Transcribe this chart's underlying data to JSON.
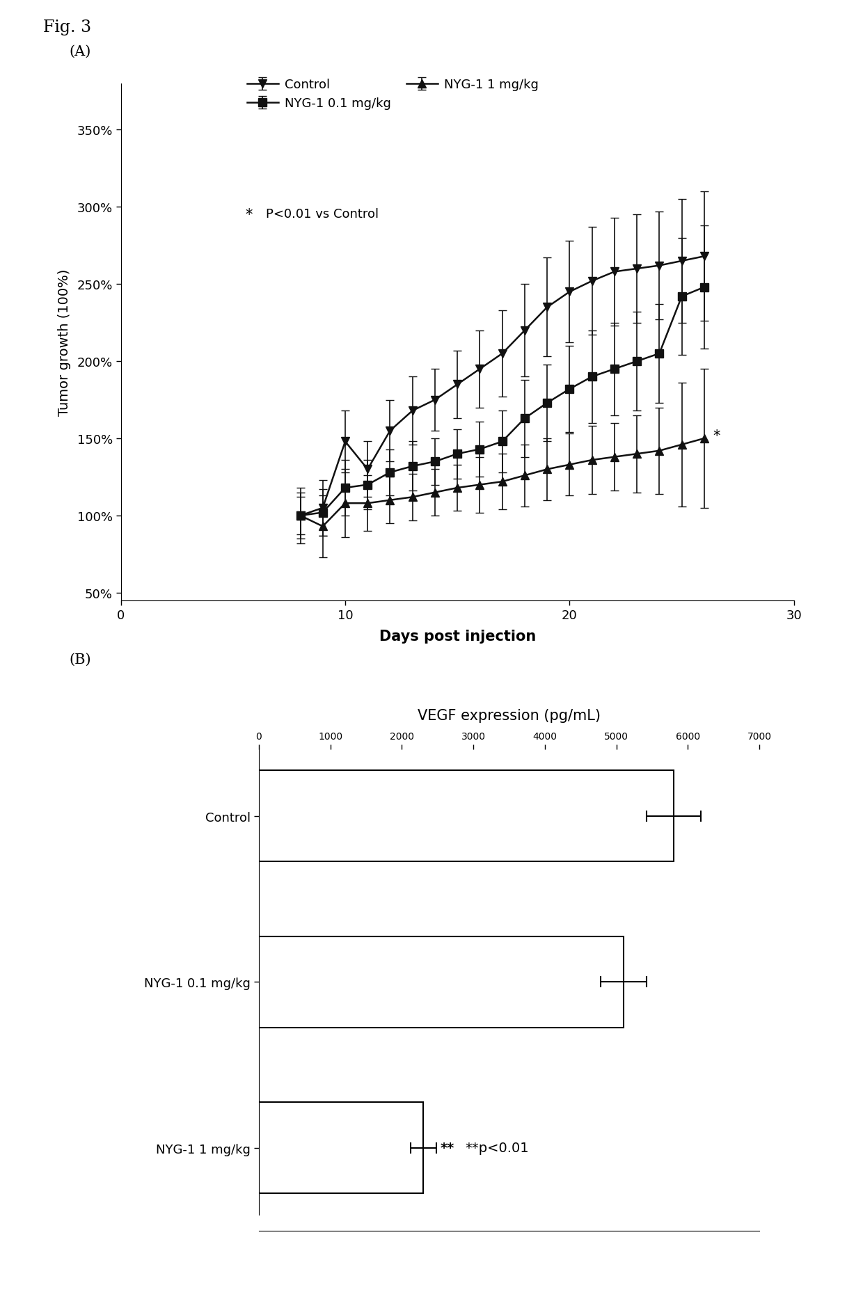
{
  "fig_label": "Fig. 3",
  "panel_A_label": "(A)",
  "panel_B_label": "(B)",
  "lineA_x": [
    8,
    9,
    10,
    11,
    12,
    13,
    14,
    15,
    16,
    17,
    18,
    19,
    20,
    21,
    22,
    23,
    24,
    25,
    26
  ],
  "lineA_y": [
    100,
    105,
    148,
    130,
    155,
    168,
    175,
    185,
    195,
    205,
    220,
    235,
    245,
    252,
    258,
    260,
    262,
    265,
    268
  ],
  "lineA_yerr": [
    15,
    18,
    20,
    18,
    20,
    22,
    20,
    22,
    25,
    28,
    30,
    32,
    33,
    35,
    35,
    35,
    35,
    40,
    42
  ],
  "lineA_label": "Control",
  "lineA_marker": "v",
  "lineA_color": "#111111",
  "lineB_x": [
    8,
    9,
    10,
    11,
    12,
    13,
    14,
    15,
    16,
    17,
    18,
    19,
    20,
    21,
    22,
    23,
    24,
    25,
    26
  ],
  "lineB_y": [
    100,
    102,
    118,
    120,
    128,
    132,
    135,
    140,
    143,
    148,
    163,
    173,
    182,
    190,
    195,
    200,
    205,
    242,
    248
  ],
  "lineB_yerr": [
    12,
    15,
    18,
    16,
    15,
    16,
    15,
    16,
    18,
    20,
    25,
    25,
    28,
    30,
    30,
    32,
    32,
    38,
    40
  ],
  "lineB_label": "NYG-1 0.1 mg/kg",
  "lineB_marker": "s",
  "lineB_color": "#111111",
  "lineC_x": [
    8,
    9,
    10,
    11,
    12,
    13,
    14,
    15,
    16,
    17,
    18,
    19,
    20,
    21,
    22,
    23,
    24,
    25,
    26
  ],
  "lineC_y": [
    100,
    93,
    108,
    108,
    110,
    112,
    115,
    118,
    120,
    122,
    126,
    130,
    133,
    136,
    138,
    140,
    142,
    146,
    150
  ],
  "lineC_yerr": [
    18,
    20,
    22,
    18,
    15,
    15,
    15,
    15,
    18,
    18,
    20,
    20,
    20,
    22,
    22,
    25,
    28,
    40,
    45
  ],
  "lineC_label": "NYG-1 1 mg/kg",
  "lineC_marker": "^",
  "lineC_color": "#111111",
  "ylabel_A": "Tumor growth (100%)",
  "xlabel_A": "Days post injection",
  "yticks_A": [
    50,
    100,
    150,
    200,
    250,
    300,
    350
  ],
  "ytick_labels_A": [
    "50%",
    "100%",
    "150%",
    "200%",
    "250%",
    "300%",
    "350%"
  ],
  "ylim_A": [
    45,
    380
  ],
  "xlim_A": [
    0,
    30
  ],
  "xticks_A": [
    0,
    10,
    20,
    30
  ],
  "annot_A_star": "*",
  "annot_A_text": "P<0.01 vs Control",
  "bar_categories": [
    "Control",
    "NYG-1 0.1 mg/kg",
    "NYG-1 1 mg/kg"
  ],
  "bar_values": [
    5800,
    5100,
    2300
  ],
  "bar_errors": [
    380,
    320,
    180
  ],
  "bar_color": "#ffffff",
  "bar_edgecolor": "#000000",
  "title_B": "VEGF expression (pg/mL)",
  "xlim_B": [
    0,
    7000
  ],
  "xticks_B": [
    0,
    1000,
    2000,
    3000,
    4000,
    5000,
    6000,
    7000
  ],
  "annot_B_stars": "**",
  "annot_B_text": "**p<0.01",
  "background_color": "#ffffff",
  "text_color": "#000000",
  "linewidth": 1.8,
  "capsize": 4
}
